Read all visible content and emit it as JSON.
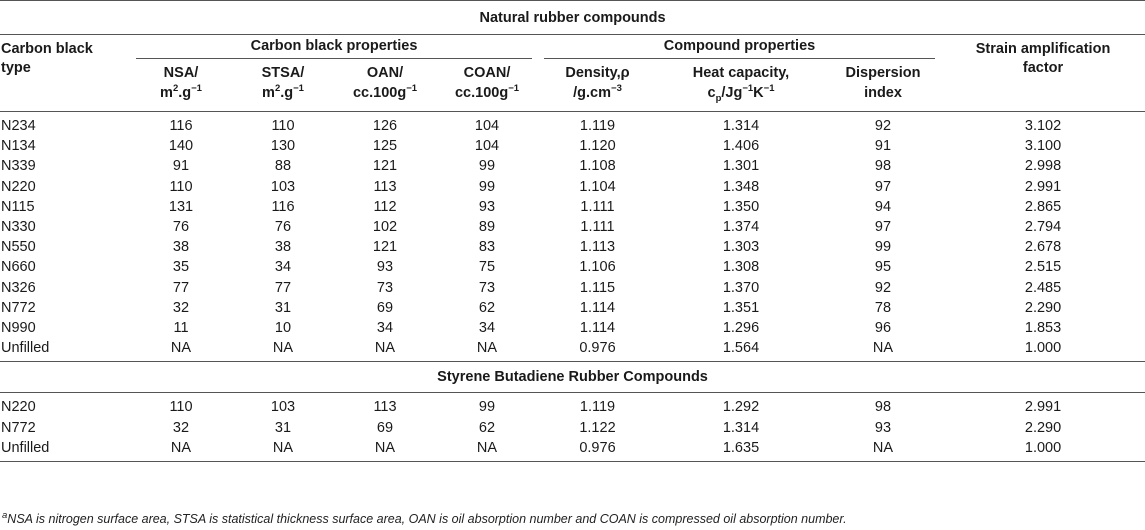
{
  "titles": {
    "natural": "Natural rubber compounds",
    "sbr": "Styrene Butadiene Rubber Compounds"
  },
  "headers": {
    "type_line1": "Carbon black",
    "type_line2": "type",
    "group_cb": "Carbon black properties",
    "group_compound": "Compound properties",
    "saf_line1": "Strain amplification",
    "saf_line2": "factor",
    "nsa_line1": "NSA/",
    "nsa_unit": "m",
    "nsa_sup": "2",
    "nsa_rest": ".g",
    "nsa_sup2": "−1",
    "stsa_line1": "STSA/",
    "stsa_unit": "m",
    "stsa_sup": "2",
    "stsa_rest": ".g",
    "stsa_sup2": "−1",
    "oan_line1": "OAN/",
    "oan_unit": "cc.100g",
    "oan_sup": "−1",
    "coan_line1": "COAN/",
    "coan_unit": "cc.100g",
    "coan_sup": "−1",
    "density_line1": "Density,ρ",
    "density_unit": "/g.cm",
    "density_sup": "−3",
    "heat_line1": "Heat capacity,",
    "heat_c": "c",
    "heat_sub": "p",
    "heat_rest1": "/Jg",
    "heat_sup1": "−1",
    "heat_rest2": "K",
    "heat_sup2": "−1",
    "disp_line1": "Dispersion",
    "disp_line2": "index"
  },
  "natural_rows": [
    [
      "N234",
      "116",
      "110",
      "126",
      "104",
      "1.119",
      "1.314",
      "92",
      "3.102"
    ],
    [
      "N134",
      "140",
      "130",
      "125",
      "104",
      "1.120",
      "1.406",
      "91",
      "3.100"
    ],
    [
      "N339",
      "91",
      "88",
      "121",
      "99",
      "1.108",
      "1.301",
      "98",
      "2.998"
    ],
    [
      "N220",
      "110",
      "103",
      "113",
      "99",
      "1.104",
      "1.348",
      "97",
      "2.991"
    ],
    [
      "N115",
      "131",
      "116",
      "112",
      "93",
      "1.111",
      "1.350",
      "94",
      "2.865"
    ],
    [
      "N330",
      "76",
      "76",
      "102",
      "89",
      "1.111",
      "1.374",
      "97",
      "2.794"
    ],
    [
      "N550",
      "38",
      "38",
      "121",
      "83",
      "1.113",
      "1.303",
      "99",
      "2.678"
    ],
    [
      "N660",
      "35",
      "34",
      "93",
      "75",
      "1.106",
      "1.308",
      "95",
      "2.515"
    ],
    [
      "N326",
      "77",
      "77",
      "73",
      "73",
      "1.115",
      "1.370",
      "92",
      "2.485"
    ],
    [
      "N772",
      "32",
      "31",
      "69",
      "62",
      "1.114",
      "1.351",
      "78",
      "2.290"
    ],
    [
      "N990",
      "11",
      "10",
      "34",
      "34",
      "1.114",
      "1.296",
      "96",
      "1.853"
    ],
    [
      "Unfilled",
      "NA",
      "NA",
      "NA",
      "NA",
      "0.976",
      "1.564",
      "NA",
      "1.000"
    ]
  ],
  "sbr_rows": [
    [
      "N220",
      "110",
      "103",
      "113",
      "99",
      "1.119",
      "1.292",
      "98",
      "2.991"
    ],
    [
      "N772",
      "32",
      "31",
      "69",
      "62",
      "1.122",
      "1.314",
      "93",
      "2.290"
    ],
    [
      "Unfilled",
      "NA",
      "NA",
      "NA",
      "NA",
      "0.976",
      "1.635",
      "NA",
      "1.000"
    ]
  ],
  "footnote": {
    "marker": "a",
    "text": "NSA is nitrogen surface area, STSA is statistical thickness surface area, OAN is oil absorption number and COAN is compressed oil absorption number."
  }
}
